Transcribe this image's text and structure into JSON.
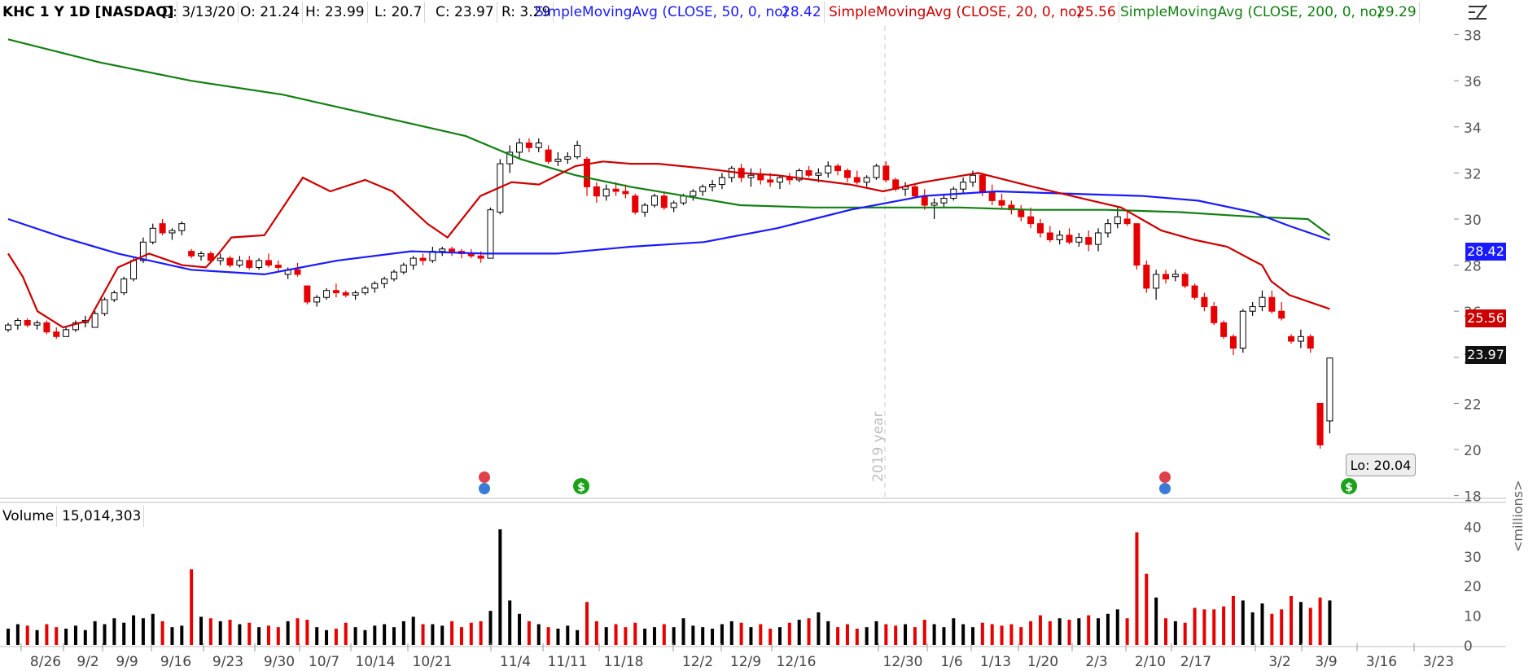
{
  "header": {
    "symbol": "KHC 1 Y 1D [NASDAQ]",
    "date": "D: 3/13/20",
    "open": "O: 21.24",
    "high": "H: 23.99",
    "low": "L: 20.7",
    "close": "C: 23.97",
    "range": "R: 3.29",
    "sma50_label": "SimpleMovingAvg (CLOSE, 50, 0, no)",
    "sma50_value": "28.42",
    "sma20_label": "SimpleMovingAvg (CLOSE, 20, 0, no)",
    "sma20_value": "25.56",
    "sma200_label": "SimpleMovingAvg (CLOSE, 200, 0, no)",
    "sma200_value": "29.29"
  },
  "volume_panel": {
    "label": "Volume",
    "value": "15,014,303",
    "unit": "<millions>"
  },
  "price_tags": {
    "sma50": "28.42",
    "sma20": "25.56",
    "last": "23.97"
  },
  "low_box": "Lo: 20.04",
  "year_marker": "2019 year",
  "colors": {
    "up": "#000000",
    "down": "#e60000",
    "sma20": "#cc0000",
    "sma50": "#1a1aff",
    "sma200": "#138013",
    "last": "#111111",
    "dividend": "#1aa31a",
    "earnings": "#e0404a"
  },
  "chart_data": {
    "type": "candlestick",
    "price_axis": {
      "ticks": [
        18,
        20,
        22,
        24,
        26,
        28,
        30,
        32,
        34,
        36,
        38
      ],
      "ylim": [
        18,
        38.5
      ]
    },
    "volume_axis": {
      "ticks": [
        0,
        10,
        20,
        30,
        40
      ],
      "ylim": [
        0,
        40
      ],
      "unit": "<millions>"
    },
    "x_labels": [
      "8/26",
      "9/2",
      "9/9",
      "9/16",
      "9/23",
      "9/30",
      "10/7",
      "10/14",
      "10/21",
      "11/4",
      "11/11",
      "11/18",
      "12/2",
      "12/9",
      "12/16",
      "12/30",
      "1/6",
      "1/13",
      "1/20",
      "2/3",
      "2/10",
      "2/17",
      "3/2",
      "3/9",
      "3/16",
      "3/23"
    ],
    "candles": [
      [
        25.2,
        25.5,
        25.1,
        25.4,
        5.5
      ],
      [
        25.4,
        25.7,
        25.2,
        25.6,
        7
      ],
      [
        25.6,
        25.7,
        25.3,
        25.4,
        6.5
      ],
      [
        25.4,
        25.6,
        25.2,
        25.5,
        5
      ],
      [
        25.5,
        25.6,
        25.0,
        25.1,
        7
      ],
      [
        25.1,
        25.3,
        24.8,
        24.9,
        6
      ],
      [
        24.9,
        25.3,
        24.9,
        25.2,
        5.5
      ],
      [
        25.2,
        25.6,
        25.1,
        25.5,
        6.5
      ],
      [
        25.5,
        25.8,
        25.3,
        25.6,
        5
      ],
      [
        25.3,
        26.0,
        25.3,
        25.9,
        8
      ],
      [
        25.9,
        26.6,
        25.8,
        26.5,
        7
      ],
      [
        26.5,
        26.9,
        26.4,
        26.8,
        9
      ],
      [
        26.8,
        27.5,
        26.7,
        27.4,
        7.5
      ],
      [
        27.4,
        28.3,
        27.3,
        28.2,
        10
      ],
      [
        28.2,
        29.2,
        28.1,
        29.0,
        9
      ],
      [
        29.0,
        29.8,
        28.9,
        29.6,
        10.5
      ],
      [
        29.8,
        30.0,
        29.3,
        29.4,
        8
      ],
      [
        29.4,
        29.6,
        29.1,
        29.5,
        6
      ],
      [
        29.5,
        29.9,
        29.3,
        29.8,
        6.5
      ],
      [
        28.6,
        28.7,
        28.3,
        28.4,
        25.5
      ],
      [
        28.4,
        28.6,
        28.2,
        28.5,
        9.5
      ],
      [
        28.5,
        28.6,
        28.1,
        28.2,
        9
      ],
      [
        28.2,
        28.5,
        28.0,
        28.3,
        8
      ],
      [
        28.3,
        28.4,
        27.9,
        28.0,
        8.5
      ],
      [
        28.0,
        28.4,
        27.9,
        28.2,
        7
      ],
      [
        28.2,
        28.4,
        27.8,
        27.9,
        7.5
      ],
      [
        27.9,
        28.3,
        27.8,
        28.2,
        6
      ],
      [
        28.2,
        28.5,
        27.9,
        28.0,
        6.5
      ],
      [
        28.0,
        28.2,
        27.7,
        27.9,
        6
      ],
      [
        27.6,
        27.9,
        27.4,
        27.8,
        8
      ],
      [
        27.8,
        28.1,
        27.5,
        27.6,
        9
      ],
      [
        27.1,
        27.1,
        26.3,
        26.4,
        8.5
      ],
      [
        26.4,
        26.7,
        26.2,
        26.6,
        6
      ],
      [
        26.6,
        27.0,
        26.5,
        26.9,
        5
      ],
      [
        26.9,
        27.2,
        26.6,
        26.8,
        5.5
      ],
      [
        26.8,
        26.9,
        26.6,
        26.7,
        7.5
      ],
      [
        26.7,
        26.9,
        26.5,
        26.8,
        6
      ],
      [
        26.8,
        27.1,
        26.7,
        27.0,
        5
      ],
      [
        27.0,
        27.3,
        26.8,
        27.2,
        6.5
      ],
      [
        27.2,
        27.5,
        27.0,
        27.4,
        7
      ],
      [
        27.4,
        27.8,
        27.3,
        27.7,
        6
      ],
      [
        27.7,
        28.1,
        27.6,
        28.0,
        8
      ],
      [
        28.0,
        28.4,
        27.8,
        28.3,
        9.5
      ],
      [
        28.3,
        28.5,
        28.0,
        28.2,
        7
      ],
      [
        28.2,
        28.8,
        28.1,
        28.6,
        7
      ],
      [
        28.6,
        28.8,
        28.4,
        28.7,
        6.5
      ],
      [
        28.7,
        28.8,
        28.4,
        28.6,
        8
      ],
      [
        28.6,
        28.7,
        28.3,
        28.5,
        6
      ],
      [
        28.5,
        28.7,
        28.3,
        28.4,
        7.5
      ],
      [
        28.4,
        28.6,
        28.1,
        28.3,
        8
      ],
      [
        28.3,
        30.5,
        28.3,
        30.4,
        11.5
      ],
      [
        30.3,
        32.6,
        30.2,
        32.4,
        39
      ],
      [
        32.4,
        33.2,
        32.0,
        32.9,
        15
      ],
      [
        32.9,
        33.5,
        32.6,
        33.3,
        10.5
      ],
      [
        33.3,
        33.5,
        32.9,
        33.1,
        8
      ],
      [
        33.1,
        33.5,
        32.9,
        33.3,
        7
      ],
      [
        33.0,
        33.2,
        32.4,
        32.5,
        6
      ],
      [
        32.5,
        32.9,
        32.3,
        32.6,
        5.5
      ],
      [
        32.6,
        32.9,
        32.4,
        32.7,
        6.5
      ],
      [
        32.7,
        33.4,
        32.6,
        33.2,
        5
      ],
      [
        32.6,
        32.7,
        31.0,
        31.4,
        14.5
      ],
      [
        31.4,
        31.6,
        30.7,
        31.0,
        8
      ],
      [
        31.0,
        31.5,
        30.8,
        31.3,
        6
      ],
      [
        31.3,
        31.6,
        31.0,
        31.2,
        7
      ],
      [
        31.2,
        31.5,
        30.9,
        31.1,
        6
      ],
      [
        31.0,
        31.1,
        30.2,
        30.3,
        7.5
      ],
      [
        30.3,
        30.7,
        30.1,
        30.6,
        5.5
      ],
      [
        30.6,
        31.1,
        30.5,
        31.0,
        6
      ],
      [
        31.0,
        31.2,
        30.4,
        30.5,
        7
      ],
      [
        30.5,
        30.8,
        30.3,
        30.7,
        6
      ],
      [
        30.7,
        31.1,
        30.6,
        31.0,
        9
      ],
      [
        31.0,
        31.3,
        30.8,
        31.2,
        6.5
      ],
      [
        31.2,
        31.5,
        31.0,
        31.4,
        6
      ],
      [
        31.4,
        31.7,
        31.2,
        31.5,
        5.5
      ],
      [
        31.5,
        32.0,
        31.3,
        31.8,
        7
      ],
      [
        31.8,
        32.3,
        31.6,
        32.2,
        8
      ],
      [
        32.2,
        32.4,
        31.6,
        31.8,
        7.5
      ],
      [
        31.8,
        32.2,
        31.4,
        31.9,
        6
      ],
      [
        31.9,
        32.2,
        31.5,
        31.7,
        7
      ],
      [
        31.7,
        32.0,
        31.4,
        31.6,
        5.5
      ],
      [
        31.6,
        31.9,
        31.3,
        31.8,
        6
      ],
      [
        31.8,
        32.0,
        31.5,
        31.7,
        7.5
      ],
      [
        31.7,
        32.2,
        31.6,
        32.1,
        8.5
      ],
      [
        32.1,
        32.3,
        31.8,
        31.9,
        9
      ],
      [
        31.9,
        32.2,
        31.6,
        32.0,
        11
      ],
      [
        32.0,
        32.5,
        31.8,
        32.3,
        8
      ],
      [
        32.3,
        32.4,
        31.9,
        32.1,
        6
      ],
      [
        32.1,
        32.2,
        31.6,
        31.8,
        7
      ],
      [
        31.8,
        32.1,
        31.5,
        31.6,
        5.5
      ],
      [
        31.6,
        31.9,
        31.4,
        31.8,
        6
      ],
      [
        31.8,
        32.4,
        31.7,
        32.3,
        8
      ],
      [
        32.3,
        32.5,
        31.6,
        31.7,
        7
      ],
      [
        31.7,
        31.8,
        31.2,
        31.3,
        6.5
      ],
      [
        31.3,
        31.6,
        31.0,
        31.4,
        7
      ],
      [
        31.4,
        31.5,
        30.9,
        31.0,
        6
      ],
      [
        31.0,
        31.3,
        30.4,
        30.6,
        8.5
      ],
      [
        30.6,
        30.9,
        30.0,
        30.7,
        7
      ],
      [
        30.7,
        31.1,
        30.5,
        30.9,
        6
      ],
      [
        30.9,
        31.4,
        30.8,
        31.3,
        9
      ],
      [
        31.3,
        31.8,
        31.1,
        31.6,
        7
      ],
      [
        31.6,
        32.1,
        31.4,
        31.9,
        6
      ],
      [
        31.9,
        32.0,
        31.0,
        31.2,
        7.5
      ],
      [
        31.2,
        31.5,
        30.6,
        30.8,
        7
      ],
      [
        30.8,
        31.1,
        30.4,
        30.6,
        6.5
      ],
      [
        30.6,
        30.8,
        30.2,
        30.4,
        7
      ],
      [
        30.4,
        30.6,
        29.9,
        30.1,
        6
      ],
      [
        30.1,
        30.5,
        29.6,
        29.8,
        8
      ],
      [
        29.8,
        30.0,
        29.2,
        29.4,
        10
      ],
      [
        29.4,
        29.7,
        29.0,
        29.1,
        8
      ],
      [
        29.1,
        29.5,
        28.9,
        29.3,
        9
      ],
      [
        29.3,
        29.6,
        28.9,
        29.0,
        8.5
      ],
      [
        29.0,
        29.4,
        28.8,
        29.2,
        9
      ],
      [
        29.2,
        29.5,
        28.6,
        28.9,
        10
      ],
      [
        28.9,
        29.6,
        28.6,
        29.4,
        9
      ],
      [
        29.4,
        30.0,
        29.2,
        29.8,
        10.5
      ],
      [
        29.8,
        30.5,
        29.6,
        30.1,
        12
      ],
      [
        30.0,
        30.4,
        29.7,
        29.8,
        9
      ],
      [
        29.8,
        29.8,
        27.8,
        28.0,
        38
      ],
      [
        28.0,
        28.2,
        26.8,
        27.0,
        24
      ],
      [
        27.0,
        27.8,
        26.5,
        27.6,
        16
      ],
      [
        27.6,
        27.8,
        27.2,
        27.4,
        9
      ],
      [
        27.5,
        27.8,
        27.3,
        27.6,
        8
      ],
      [
        27.6,
        27.7,
        27.0,
        27.1,
        7.5
      ],
      [
        27.1,
        27.2,
        26.5,
        26.6,
        12.5
      ],
      [
        26.6,
        26.8,
        26.0,
        26.2,
        12
      ],
      [
        26.2,
        26.4,
        25.4,
        25.5,
        12
      ],
      [
        25.5,
        25.6,
        24.8,
        24.9,
        13
      ],
      [
        24.9,
        25.0,
        24.1,
        24.4,
        16.5
      ],
      [
        24.4,
        26.1,
        24.2,
        26.0,
        15
      ],
      [
        26.0,
        26.4,
        25.8,
        26.2,
        11
      ],
      [
        26.2,
        26.9,
        26.0,
        26.6,
        14
      ],
      [
        26.6,
        26.9,
        25.9,
        26.0,
        10.5
      ],
      [
        26.0,
        26.4,
        25.6,
        25.7,
        12
      ],
      [
        24.9,
        25.0,
        24.6,
        24.7,
        16.5
      ],
      [
        24.7,
        25.2,
        24.4,
        24.9,
        14.5
      ],
      [
        24.9,
        25.0,
        24.2,
        24.4,
        12.5
      ],
      [
        22.0,
        22.0,
        20.04,
        20.2,
        16
      ],
      [
        21.24,
        23.99,
        20.7,
        23.97,
        15.0
      ]
    ],
    "sma20": [
      [
        0,
        28.5
      ],
      [
        8,
        27.5
      ],
      [
        16,
        26.0
      ],
      [
        30,
        25.3
      ],
      [
        44,
        25.6
      ],
      [
        60,
        27.9
      ],
      [
        77,
        28.5
      ],
      [
        95,
        28.0
      ],
      [
        108,
        27.9
      ],
      [
        115,
        28.5
      ],
      [
        122,
        29.2
      ],
      [
        140,
        29.3
      ],
      [
        161,
        31.8
      ],
      [
        176,
        31.2
      ],
      [
        195,
        31.7
      ],
      [
        210,
        31.2
      ],
      [
        229,
        29.8
      ],
      [
        240,
        29.2
      ],
      [
        258,
        31.0
      ],
      [
        275,
        31.6
      ],
      [
        290,
        31.5
      ],
      [
        310,
        32.3
      ],
      [
        325,
        32.5
      ],
      [
        340,
        32.4
      ],
      [
        355,
        32.4
      ],
      [
        380,
        32.2
      ],
      [
        400,
        32.0
      ],
      [
        420,
        31.9
      ],
      [
        440,
        31.7
      ],
      [
        460,
        31.5
      ],
      [
        478,
        31.2
      ],
      [
        500,
        31.6
      ],
      [
        530,
        32.0
      ],
      [
        560,
        31.4
      ],
      [
        592,
        30.8
      ],
      [
        608,
        30.5
      ],
      [
        630,
        29.5
      ],
      [
        648,
        29.1
      ],
      [
        666,
        28.8
      ],
      [
        680,
        28.2
      ],
      [
        685,
        28.0
      ],
      [
        690,
        27.3
      ],
      [
        700,
        26.7
      ],
      [
        722,
        26.1
      ]
    ],
    "sma50": [
      [
        0,
        30.0
      ],
      [
        30,
        29.2
      ],
      [
        60,
        28.5
      ],
      [
        100,
        27.8
      ],
      [
        140,
        27.6
      ],
      [
        180,
        28.2
      ],
      [
        220,
        28.6
      ],
      [
        260,
        28.5
      ],
      [
        300,
        28.5
      ],
      [
        340,
        28.8
      ],
      [
        380,
        29.0
      ],
      [
        420,
        29.6
      ],
      [
        460,
        30.4
      ],
      [
        500,
        31.0
      ],
      [
        540,
        31.2
      ],
      [
        580,
        31.1
      ],
      [
        620,
        31.0
      ],
      [
        650,
        30.8
      ],
      [
        680,
        30.3
      ],
      [
        700,
        29.7
      ],
      [
        722,
        29.1
      ]
    ],
    "sma200": [
      [
        0,
        37.8
      ],
      [
        50,
        36.8
      ],
      [
        100,
        36.0
      ],
      [
        150,
        35.4
      ],
      [
        200,
        34.5
      ],
      [
        250,
        33.6
      ],
      [
        280,
        32.6
      ],
      [
        310,
        31.9
      ],
      [
        340,
        31.4
      ],
      [
        370,
        31.0
      ],
      [
        400,
        30.6
      ],
      [
        440,
        30.5
      ],
      [
        480,
        30.5
      ],
      [
        520,
        30.5
      ],
      [
        560,
        30.4
      ],
      [
        600,
        30.4
      ],
      [
        640,
        30.3
      ],
      [
        680,
        30.1
      ],
      [
        710,
        30.0
      ],
      [
        722,
        29.29
      ]
    ]
  }
}
